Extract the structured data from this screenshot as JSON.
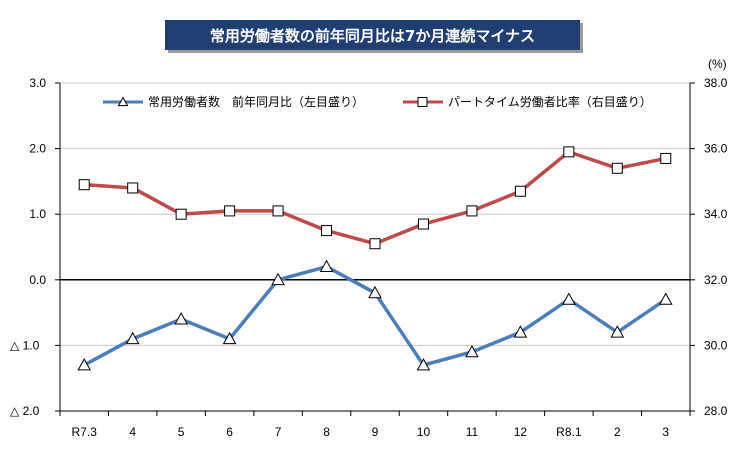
{
  "title": "常用労働者数の前年同月比は7か月連続マイナス",
  "colors": {
    "title_bg": "#1f3f73",
    "left_series": "#4a7ebb",
    "right_series": "#be4b48",
    "marker_fill": "#ffffff"
  },
  "chart_data": {
    "type": "line",
    "categories": [
      "R7.3",
      "4",
      "5",
      "6",
      "7",
      "8",
      "9",
      "10",
      "11",
      "12",
      "R8.1",
      "2",
      "3"
    ],
    "left_axis": {
      "ylim": [
        -2.0,
        3.0
      ],
      "ticks": [
        3.0,
        2.0,
        1.0,
        0.0,
        -1.0,
        -2.0
      ],
      "tick_labels": [
        "3.0",
        "2.0",
        "1.0",
        "0.0",
        "△ 1.0",
        "△ 2.0"
      ]
    },
    "right_axis": {
      "unit": "(%)",
      "ylim": [
        28.0,
        38.0
      ],
      "ticks": [
        38.0,
        36.0,
        34.0,
        32.0,
        30.0,
        28.0
      ],
      "tick_labels": [
        "38.0",
        "36.0",
        "34.0",
        "32.0",
        "30.0",
        "28.0"
      ]
    },
    "series": [
      {
        "name": "常用労働者数　前年同月比（左目盛り）",
        "axis": "left",
        "marker": "triangle",
        "values": [
          -1.3,
          -0.9,
          -0.6,
          -0.9,
          0.0,
          0.2,
          -0.2,
          -1.3,
          -1.1,
          -0.8,
          -0.3,
          -0.8,
          -0.3
        ]
      },
      {
        "name": "パートタイム労働者比率（右目盛り）",
        "axis": "right",
        "marker": "square",
        "values": [
          34.9,
          34.8,
          34.0,
          34.1,
          34.1,
          33.5,
          33.1,
          33.7,
          34.1,
          34.7,
          35.9,
          35.4,
          35.7
        ]
      }
    ],
    "legend_position": "top",
    "grid": true
  }
}
